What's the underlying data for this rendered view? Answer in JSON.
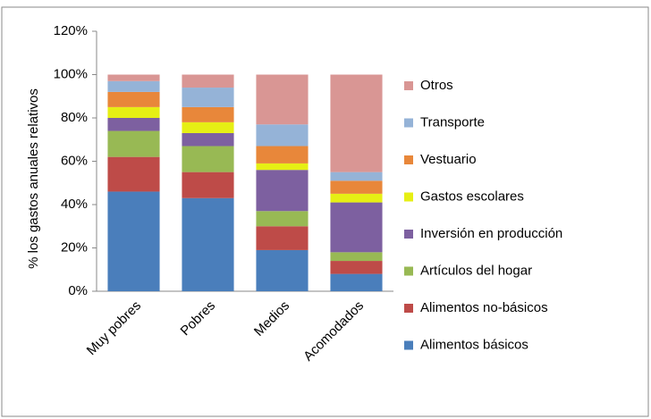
{
  "chart_data": {
    "type": "stacked_bar",
    "y_label": "% los gastos anuales relativos",
    "categories": [
      "Muy pobres",
      "Pobres",
      "Medios",
      "Acomodados"
    ],
    "series": [
      {
        "name": "Alimentos básicos",
        "color": "#4a7ebb",
        "values": [
          46,
          43,
          19,
          8
        ]
      },
      {
        "name": "Alimentos no-básicos",
        "color": "#be4b48",
        "values": [
          16,
          12,
          11,
          6
        ]
      },
      {
        "name": "Artículos del hogar",
        "color": "#98b954",
        "values": [
          12,
          12,
          7,
          4
        ]
      },
      {
        "name": "Inversión en producción",
        "color": "#7d60a0",
        "values": [
          6,
          6,
          19,
          23
        ]
      },
      {
        "name": "Gastos escolares",
        "color": "#e6ef14",
        "values": [
          5,
          5,
          3,
          4
        ]
      },
      {
        "name": "Vestuario",
        "color": "#e8873a",
        "values": [
          7,
          7,
          8,
          6
        ]
      },
      {
        "name": "Transporte",
        "color": "#95b3d7",
        "values": [
          5,
          9,
          10,
          4
        ]
      },
      {
        "name": "Otros",
        "color": "#d99694",
        "values": [
          3,
          6,
          23,
          45
        ]
      }
    ],
    "ylim": [
      0,
      120
    ],
    "yticks": [
      {
        "value": 0,
        "label": "0%"
      },
      {
        "value": 20,
        "label": "20%"
      },
      {
        "value": 40,
        "label": "40%"
      },
      {
        "value": 60,
        "label": "60%"
      },
      {
        "value": 80,
        "label": "80%"
      },
      {
        "value": 100,
        "label": "100%"
      },
      {
        "value": 120,
        "label": "120%"
      }
    ],
    "grid": false,
    "legend": "right"
  }
}
